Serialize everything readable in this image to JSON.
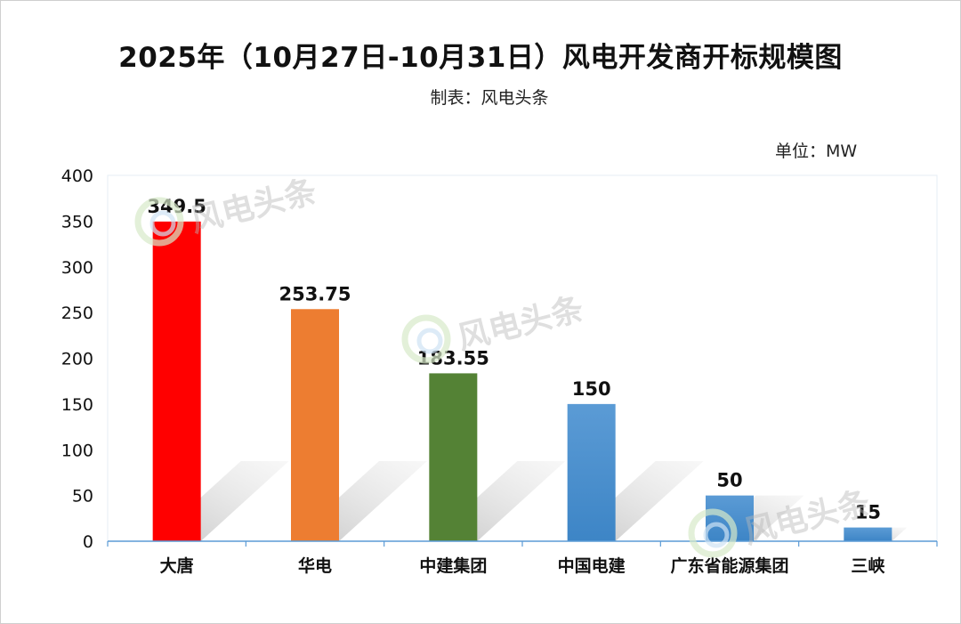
{
  "title": "2025年（10月27日-10月31日）风电开发商开标规模图",
  "subtitle": "制表：风电头条",
  "unit_label": "单位：MW",
  "watermark_text": "风电头条",
  "chart_data": {
    "type": "bar",
    "title": "2025年（10月27日-10月31日）风电开发商开标规模图",
    "xlabel": "",
    "ylabel": "",
    "categories": [
      "大唐",
      "华电",
      "中建集团",
      "中国电建",
      "广东省能源集团",
      "三峡"
    ],
    "values": [
      349.5,
      253.75,
      183.55,
      150,
      50,
      15
    ],
    "value_labels": [
      "349.5",
      "253.75",
      "183.55",
      "150",
      "50",
      "15"
    ],
    "colors": [
      "#ff0000",
      "#ed7d31",
      "#548235",
      "#5b9bd5",
      "#5b9bd5",
      "#5b9bd5"
    ],
    "ylim": [
      0,
      400
    ],
    "yticks": [
      0,
      50,
      100,
      150,
      200,
      250,
      300,
      350,
      400
    ],
    "grid": false,
    "legend": "none"
  }
}
